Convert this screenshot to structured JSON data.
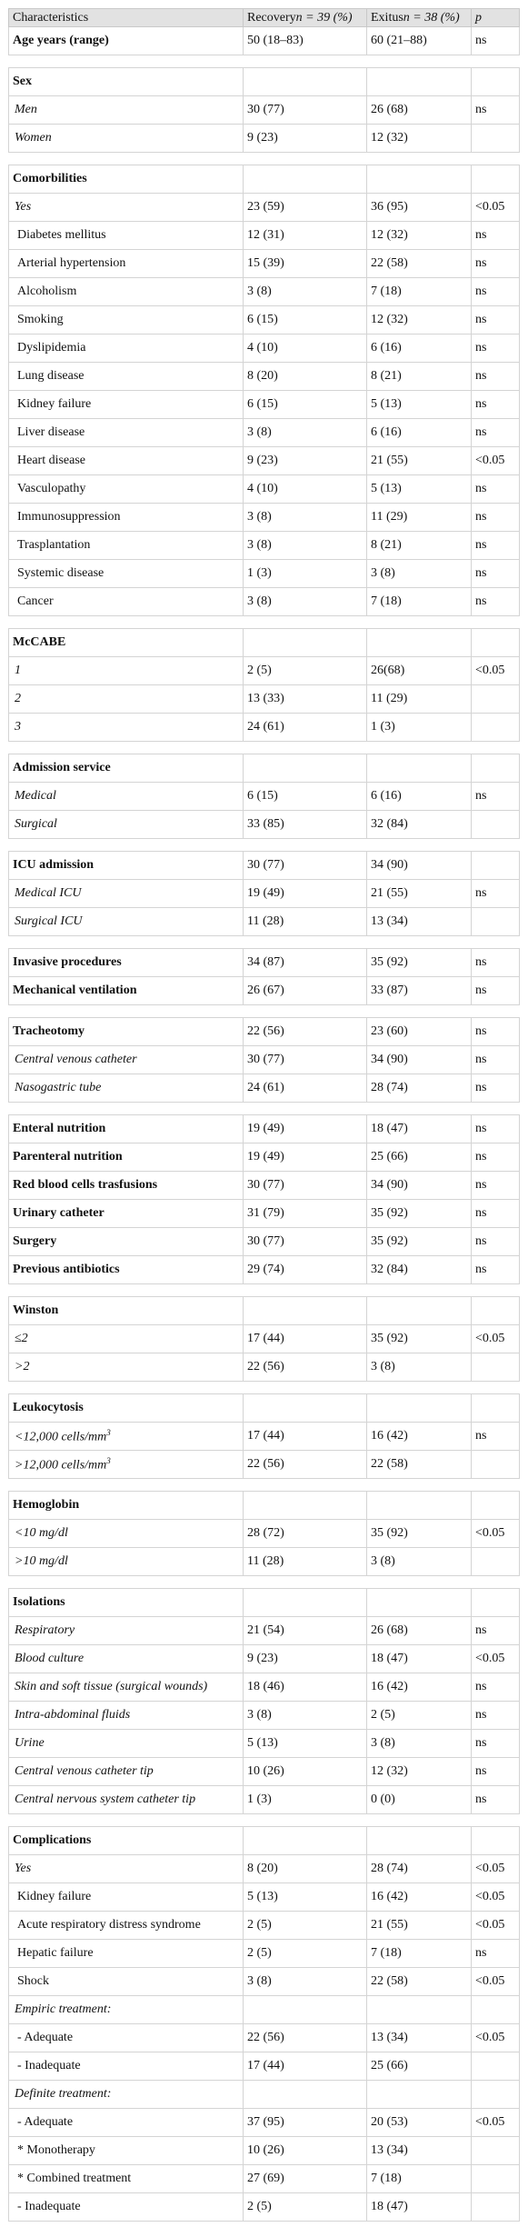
{
  "table": {
    "header": [
      "Characteristics",
      {
        "text": "Recovery",
        "n": "n = 39 (%)"
      },
      {
        "text": "Exitus",
        "n": "n = 38 (%)"
      },
      "p"
    ],
    "groups": [
      {
        "rows": [
          {
            "style": "bold",
            "cells": [
              "Age years (range)",
              "50 (18–83)",
              "60 (21–88)",
              "ns"
            ]
          }
        ]
      },
      {
        "rows": [
          {
            "style": "bold",
            "cells": [
              "Sex"
            ]
          },
          {
            "style": "italic",
            "cells": [
              "Men",
              "30 (77)",
              "26 (68)",
              "ns"
            ]
          },
          {
            "style": "italic",
            "cells": [
              "Women",
              "9 (23)",
              "12 (32)"
            ]
          }
        ]
      },
      {
        "rows": [
          {
            "style": "bold",
            "cells": [
              "Comorbilities"
            ]
          },
          {
            "style": "italic",
            "cells": [
              "Yes",
              "23 (59)",
              "36 (95)",
              "<0.05"
            ]
          },
          {
            "style": "plain",
            "cells": [
              "Diabetes mellitus",
              "12 (31)",
              "12 (32)",
              "ns"
            ]
          },
          {
            "style": "plain",
            "cells": [
              "Arterial hypertension",
              "15 (39)",
              "22 (58)",
              "ns"
            ]
          },
          {
            "style": "plain",
            "cells": [
              "Alcoholism",
              "3 (8)",
              "7 (18)",
              "ns"
            ]
          },
          {
            "style": "plain",
            "cells": [
              "Smoking",
              "6 (15)",
              "12 (32)",
              "ns"
            ]
          },
          {
            "style": "plain",
            "cells": [
              "Dyslipidemia",
              "4 (10)",
              "6 (16)",
              "ns"
            ]
          },
          {
            "style": "plain",
            "cells": [
              "Lung disease",
              "8 (20)",
              "8 (21)",
              "ns"
            ]
          },
          {
            "style": "plain",
            "cells": [
              "Kidney failure",
              "6 (15)",
              "5 (13)",
              "ns"
            ]
          },
          {
            "style": "plain",
            "cells": [
              "Liver disease",
              "3 (8)",
              "6 (16)",
              "ns"
            ]
          },
          {
            "style": "plain",
            "cells": [
              "Heart disease",
              "9 (23)",
              "21 (55)",
              "<0.05"
            ]
          },
          {
            "style": "plain",
            "cells": [
              "Vasculopathy",
              "4 (10)",
              "5 (13)",
              "ns"
            ]
          },
          {
            "style": "plain",
            "cells": [
              "Immunosuppression",
              "3 (8)",
              "11 (29)",
              "ns"
            ]
          },
          {
            "style": "plain",
            "cells": [
              "Trasplantation",
              "3 (8)",
              "8 (21)",
              "ns"
            ]
          },
          {
            "style": "plain",
            "cells": [
              "Systemic disease",
              "1 (3)",
              "3 (8)",
              "ns"
            ]
          },
          {
            "style": "plain",
            "cells": [
              "Cancer",
              "3 (8)",
              "7 (18)",
              "ns"
            ]
          }
        ]
      },
      {
        "rows": [
          {
            "style": "bold",
            "cells": [
              "McCABE"
            ]
          },
          {
            "style": "italic",
            "cells": [
              "1",
              "2 (5)",
              "26(68)",
              "<0.05"
            ]
          },
          {
            "style": "italic",
            "cells": [
              "2",
              "13 (33)",
              "11 (29)"
            ]
          },
          {
            "style": "italic",
            "cells": [
              "3",
              "24 (61)",
              "1 (3)"
            ]
          }
        ]
      },
      {
        "rows": [
          {
            "style": "bold",
            "cells": [
              "Admission service"
            ]
          },
          {
            "style": "italic",
            "cells": [
              "Medical",
              "6 (15)",
              "6 (16)",
              "ns"
            ]
          },
          {
            "style": "italic",
            "cells": [
              "Surgical",
              "33 (85)",
              "32 (84)"
            ]
          }
        ]
      },
      {
        "rows": [
          {
            "style": "bold",
            "cells": [
              "ICU admission",
              "30 (77)",
              "34 (90)"
            ]
          },
          {
            "style": "italic",
            "cells": [
              "Medical ICU",
              "19 (49)",
              "21 (55)",
              "ns"
            ]
          },
          {
            "style": "italic",
            "cells": [
              "Surgical ICU",
              "11 (28)",
              "13 (34)"
            ]
          }
        ]
      },
      {
        "rows": [
          {
            "style": "bold",
            "cells": [
              "Invasive procedures",
              "34 (87)",
              "35 (92)",
              "ns"
            ]
          },
          {
            "style": "bold",
            "cells": [
              "Mechanical ventilation",
              "26 (67)",
              "33 (87)",
              "ns"
            ]
          }
        ]
      },
      {
        "rows": [
          {
            "style": "bold",
            "cells": [
              "Tracheotomy",
              "22 (56)",
              "23 (60)",
              "ns"
            ]
          },
          {
            "style": "italic",
            "cells": [
              "Central venous catheter",
              "30 (77)",
              "34 (90)",
              "ns"
            ]
          },
          {
            "style": "italic",
            "cells": [
              "Nasogastric tube",
              "24 (61)",
              "28 (74)",
              "ns"
            ]
          }
        ]
      },
      {
        "rows": [
          {
            "style": "bold",
            "cells": [
              "Enteral nutrition",
              "19 (49)",
              "18 (47)",
              "ns"
            ]
          },
          {
            "style": "bold",
            "cells": [
              "Parenteral nutrition",
              "19 (49)",
              "25 (66)",
              "ns"
            ]
          },
          {
            "style": "bold",
            "cells": [
              "Red blood cells trasfusions",
              "30 (77)",
              "34 (90)",
              "ns"
            ]
          },
          {
            "style": "bold",
            "cells": [
              "Urinary catheter",
              "31 (79)",
              "35 (92)",
              "ns"
            ]
          },
          {
            "style": "bold",
            "cells": [
              "Surgery",
              "30 (77)",
              "35 (92)",
              "ns"
            ]
          },
          {
            "style": "bold",
            "cells": [
              "Previous antibiotics",
              "29 (74)",
              "32 (84)",
              "ns"
            ]
          }
        ]
      },
      {
        "rows": [
          {
            "style": "bold",
            "cells": [
              "Winston"
            ]
          },
          {
            "style": "italic",
            "cells": [
              "≤2",
              "17 (44)",
              "35 (92)",
              "<0.05"
            ]
          },
          {
            "style": "italic",
            "cells": [
              ">2",
              "22 (56)",
              "3 (8)"
            ]
          }
        ]
      },
      {
        "rows": [
          {
            "style": "bold",
            "cells": [
              "Leukocytosis"
            ]
          },
          {
            "style": "italic",
            "cells": [
              "<12,000 cells/mm",
              "17 (44)",
              "16 (42)",
              "ns"
            ],
            "sup": "3"
          },
          {
            "style": "italic",
            "cells": [
              ">12,000 cells/mm",
              "22 (56)",
              "22 (58)"
            ],
            "sup": "3"
          }
        ]
      },
      {
        "rows": [
          {
            "style": "bold",
            "cells": [
              "Hemoglobin"
            ]
          },
          {
            "style": "italic",
            "cells": [
              "<10 mg/dl",
              "28 (72)",
              "35 (92)",
              "<0.05"
            ]
          },
          {
            "style": "italic",
            "cells": [
              ">10 mg/dl",
              "11 (28)",
              "3 (8)"
            ]
          }
        ]
      },
      {
        "rows": [
          {
            "style": "bold",
            "cells": [
              "Isolations"
            ]
          },
          {
            "style": "italic",
            "cells": [
              "Respiratory",
              "21 (54)",
              "26 (68)",
              "ns"
            ]
          },
          {
            "style": "italic",
            "cells": [
              "Blood culture",
              "9 (23)",
              "18 (47)",
              "<0.05"
            ]
          },
          {
            "style": "italic",
            "cells": [
              "Skin and soft tissue (surgical wounds)",
              "18 (46)",
              "16 (42)",
              "ns"
            ]
          },
          {
            "style": "italic",
            "cells": [
              "Intra-abdominal fluids",
              "3 (8)",
              "2 (5)",
              "ns"
            ]
          },
          {
            "style": "italic",
            "cells": [
              "Urine",
              "5 (13)",
              "3 (8)",
              "ns"
            ]
          },
          {
            "style": "italic",
            "cells": [
              "Central venous catheter tip",
              "10 (26)",
              "12 (32)",
              "ns"
            ]
          },
          {
            "style": "italic",
            "cells": [
              "Central nervous system catheter tip",
              "1 (3)",
              "0 (0)",
              "ns"
            ]
          }
        ]
      },
      {
        "rows": [
          {
            "style": "bold",
            "cells": [
              "Complications"
            ]
          },
          {
            "style": "italic",
            "cells": [
              "Yes",
              "8 (20)",
              "28 (74)",
              "<0.05"
            ]
          },
          {
            "style": "plain",
            "cells": [
              "Kidney failure",
              "5 (13)",
              "16 (42)",
              "<0.05"
            ]
          },
          {
            "style": "plain",
            "cells": [
              "Acute respiratory distress syndrome",
              "2 (5)",
              "21 (55)",
              "<0.05"
            ]
          },
          {
            "style": "plain",
            "cells": [
              "Hepatic failure",
              "2 (5)",
              "7 (18)",
              "ns"
            ]
          },
          {
            "style": "plain",
            "cells": [
              "Shock",
              "3 (8)",
              "22 (58)",
              "<0.05"
            ]
          },
          {
            "style": "italic",
            "cells": [
              "Empiric treatment:"
            ]
          },
          {
            "style": "plain",
            "cells": [
              "- Adequate",
              "22 (56)",
              "13 (34)",
              "<0.05"
            ]
          },
          {
            "style": "plain",
            "cells": [
              "- Inadequate",
              "17 (44)",
              "25 (66)"
            ]
          },
          {
            "style": "italic",
            "cells": [
              "Definite treatment:"
            ]
          },
          {
            "style": "plain",
            "cells": [
              "- Adequate",
              "37 (95)",
              "20 (53)",
              "<0.05"
            ]
          },
          {
            "style": "plain",
            "cells": [
              "* Monotherapy",
              "10 (26)",
              "13 (34)"
            ]
          },
          {
            "style": "plain",
            "cells": [
              "* Combined treatment",
              "27 (69)",
              "7 (18)"
            ]
          },
          {
            "style": "plain",
            "cells": [
              "- Inadequate",
              "2 (5)",
              "18 (47)"
            ]
          }
        ]
      }
    ]
  }
}
